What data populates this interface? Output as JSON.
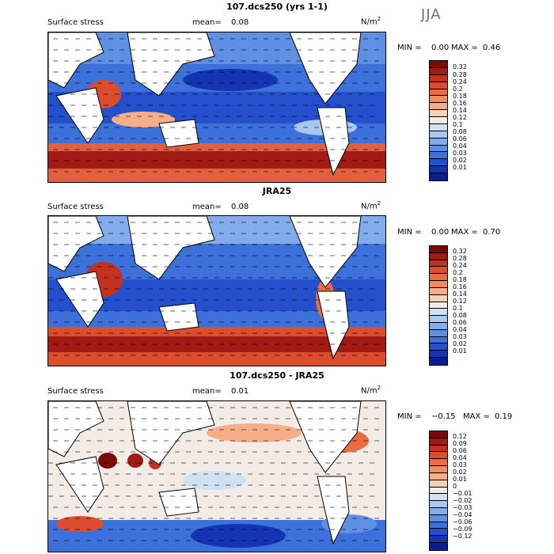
{
  "season": "JJA",
  "panels": [
    {
      "title": "107.dcs250 (yrs 1-1)",
      "left_label": "Surface stress",
      "mean_label": "mean=",
      "mean_value": "0.08",
      "units_base": "N/m",
      "units_exp": "2",
      "min_label": "MIN =",
      "min_value": "0.00",
      "max_label": "MAX =",
      "max_value": "0.46",
      "colorbar_colors": [
        "#7a0a0a",
        "#a21a14",
        "#c3321f",
        "#db4d2d",
        "#ea6c43",
        "#f38c62",
        "#f7ad88",
        "#f9cfb5",
        "#f3ece6",
        "#cfe1f5",
        "#a8c8f0",
        "#82aceb",
        "#5e90e4",
        "#3c70da",
        "#2450ce",
        "#1434b4",
        "#0a1f8f"
      ],
      "colorbar_ticks": [
        "0.32",
        "0.28",
        "0.24",
        "0.2",
        "0.18",
        "0.16",
        "0.14",
        "0.12",
        "0.1",
        "0.08",
        "0.06",
        "0.04",
        "0.03",
        "0.02",
        "0.01"
      ]
    },
    {
      "title": "JRA25",
      "left_label": "Surface stress",
      "mean_label": "mean=",
      "mean_value": "0.08",
      "units_base": "N/m",
      "units_exp": "2",
      "min_label": "MIN =",
      "min_value": "0.00",
      "max_label": "MAX =",
      "max_value": "0.70",
      "colorbar_colors": [
        "#7a0a0a",
        "#a21a14",
        "#c3321f",
        "#db4d2d",
        "#ea6c43",
        "#f38c62",
        "#f7ad88",
        "#f9cfb5",
        "#f3ece6",
        "#cfe1f5",
        "#a8c8f0",
        "#82aceb",
        "#5e90e4",
        "#3c70da",
        "#2450ce",
        "#1434b4",
        "#0a1f8f"
      ],
      "colorbar_ticks": [
        "0.32",
        "0.28",
        "0.24",
        "0.2",
        "0.18",
        "0.16",
        "0.14",
        "0.12",
        "0.1",
        "0.08",
        "0.06",
        "0.04",
        "0.03",
        "0.02",
        "0.01"
      ]
    },
    {
      "title": "107.dcs250 - JRA25",
      "left_label": "Surface stress",
      "mean_label": "mean=",
      "mean_value": "0.01",
      "units_base": "N/m",
      "units_exp": "2",
      "min_label": "MIN =",
      "min_value": "−0.15",
      "max_label": "MAX =",
      "max_value": "0.19",
      "colorbar_colors": [
        "#7a0a0a",
        "#a21a14",
        "#c3321f",
        "#db4d2d",
        "#ea6c43",
        "#f38c62",
        "#f7ad88",
        "#f9cfb5",
        "#f3ece6",
        "#cfe1f5",
        "#a8c8f0",
        "#82aceb",
        "#5e90e4",
        "#3c70da",
        "#2450ce",
        "#1434b4",
        "#0a1f8f"
      ],
      "colorbar_ticks": [
        "0.12",
        "0.09",
        "0.06",
        "0.04",
        "0.03",
        "0.02",
        "0.01",
        "0",
        "−0.01",
        "−0.02",
        "−0.03",
        "−0.04",
        "−0.06",
        "−0.09",
        "−0.12"
      ]
    }
  ]
}
